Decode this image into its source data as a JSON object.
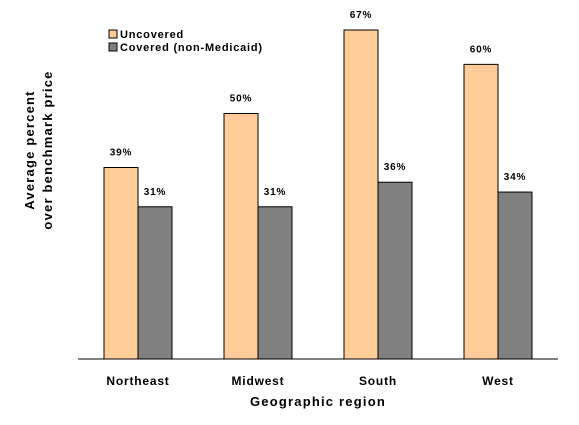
{
  "chart_data": {
    "type": "bar",
    "title": "",
    "categories": [
      "Northeast",
      "Midwest",
      "South",
      "West"
    ],
    "series": [
      {
        "name": "Uncovered",
        "values": [
          39,
          50,
          67,
          60
        ],
        "labels": [
          "39%",
          "50%",
          "67%",
          "60%"
        ],
        "color": "#FFCC99"
      },
      {
        "name": "Covered (non-Medicaid)",
        "values": [
          31,
          31,
          36,
          34
        ],
        "labels": [
          "31%",
          "31%",
          "36%",
          "34%"
        ],
        "color": "#808080"
      }
    ],
    "xlabel": "Geographic region",
    "ylabel_lines": [
      "Average percent",
      "over benchmark price"
    ],
    "ylim": [
      0,
      67
    ],
    "grid": false,
    "legend_position": "top-left"
  }
}
